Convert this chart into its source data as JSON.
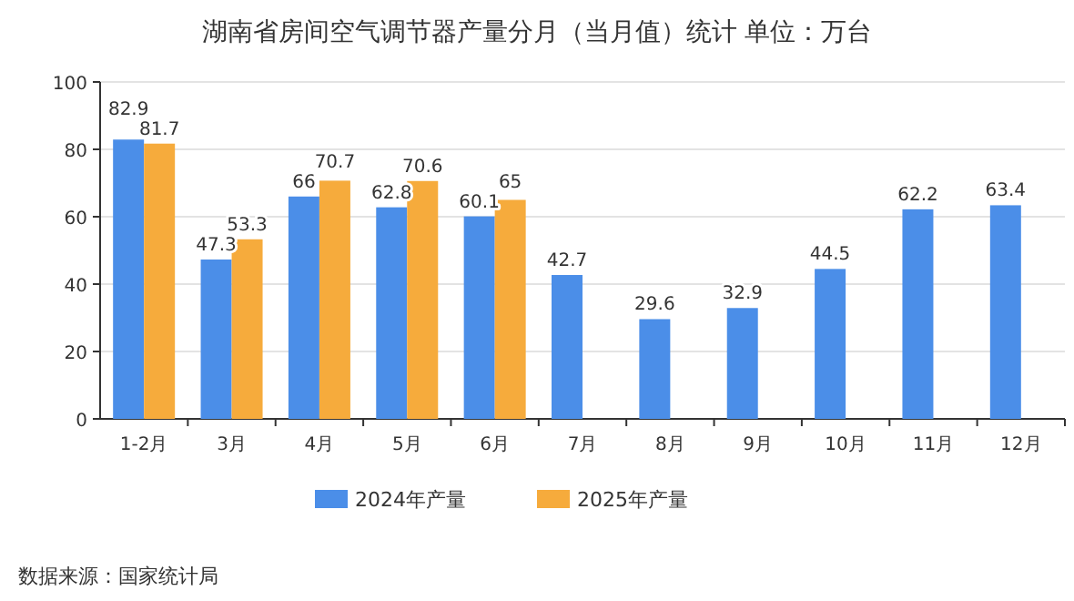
{
  "chart_data": {
    "type": "bar",
    "title": "湖南省房间空气调节器产量分月（当月值）统计  单位：万台",
    "categories": [
      "1-2月",
      "3月",
      "4月",
      "5月",
      "6月",
      "7月",
      "8月",
      "9月",
      "10月",
      "11月",
      "12月"
    ],
    "series": [
      {
        "name": "2024年产量",
        "color": "#4b8ee8",
        "values": [
          82.9,
          47.3,
          66,
          62.8,
          60.1,
          42.7,
          29.6,
          32.9,
          44.5,
          62.2,
          63.4
        ]
      },
      {
        "name": "2025年产量",
        "color": "#f6ab3c",
        "values": [
          81.7,
          53.3,
          70.7,
          70.6,
          65,
          null,
          null,
          null,
          null,
          null,
          null
        ]
      }
    ],
    "ylim": [
      0,
      100
    ],
    "yticks": [
      0,
      20,
      40,
      60,
      80,
      100
    ],
    "grid": "y",
    "legend": "bottom",
    "data_labels": true,
    "annotations": [
      "数据来源：国家统计局"
    ]
  }
}
